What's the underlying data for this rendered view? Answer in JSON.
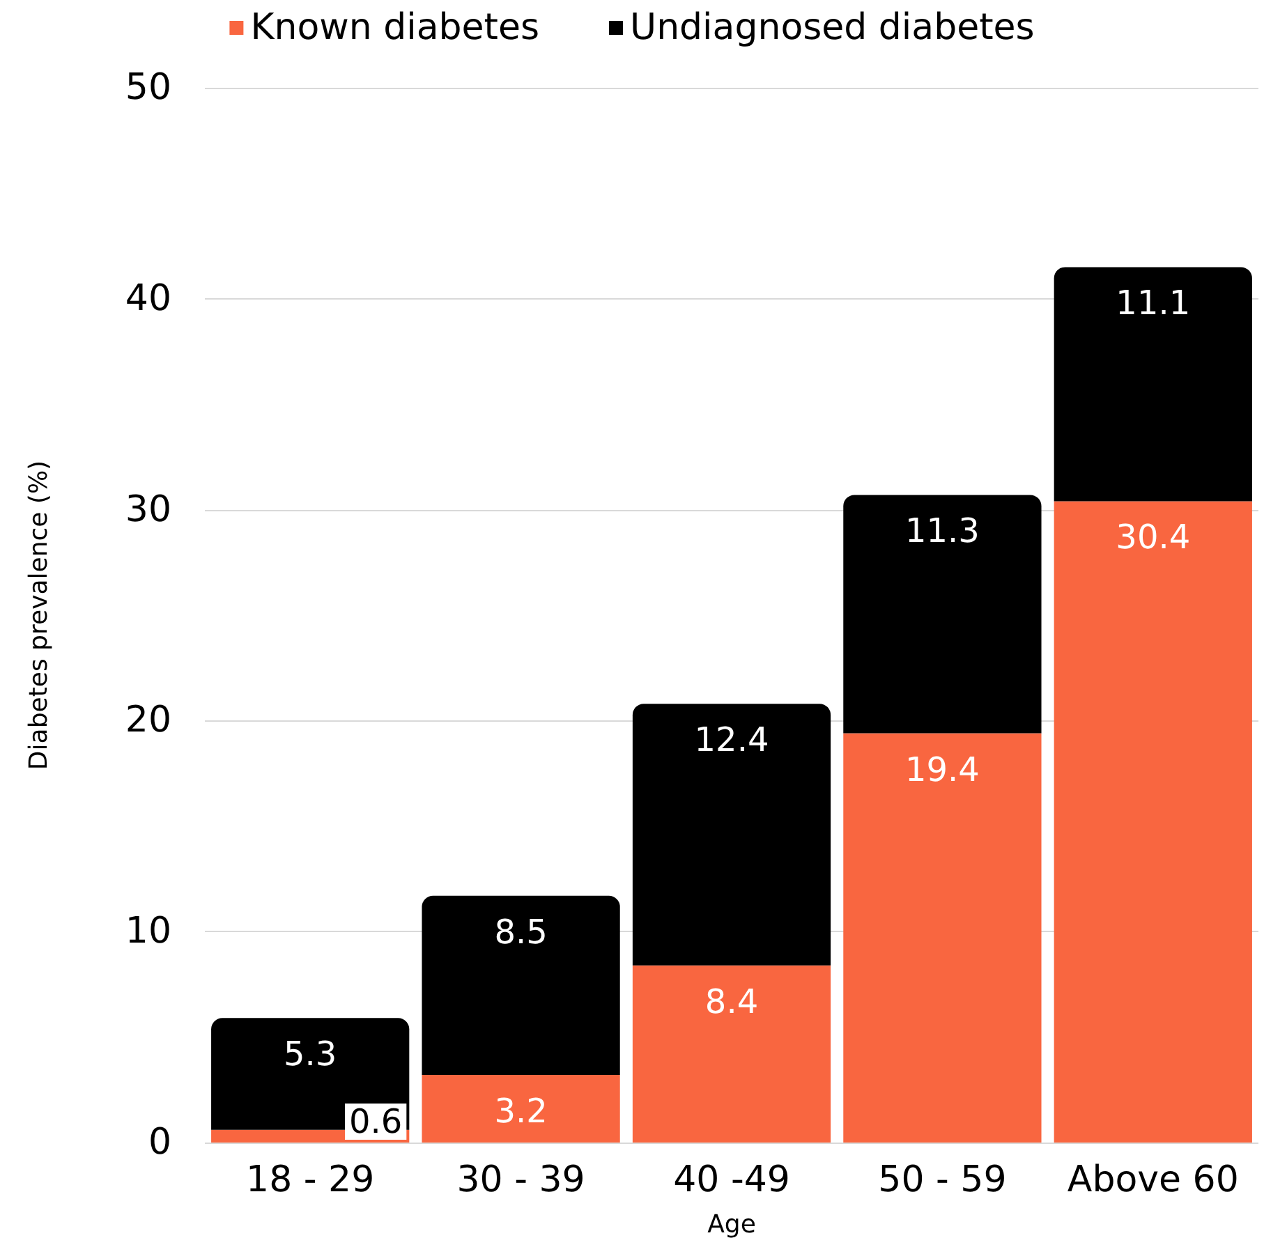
{
  "chart_data": {
    "type": "bar",
    "stacked": true,
    "xlabel": "Age",
    "ylabel": "Diabetes prevalence (%)",
    "categories": [
      "18 - 29",
      "30 - 39",
      "40 -49",
      "50 - 59",
      "Above 60"
    ],
    "series": [
      {
        "name": "Known diabetes",
        "color": "#f96640",
        "values": [
          0.6,
          3.2,
          8.4,
          19.4,
          30.4
        ]
      },
      {
        "name": "Undiagnosed diabetes",
        "color": "#000000",
        "values": [
          5.3,
          8.5,
          12.4,
          11.3,
          11.1
        ]
      }
    ],
    "ylim": [
      0,
      50
    ],
    "yticks": [
      0,
      10,
      20,
      30,
      40,
      50
    ],
    "grid": "y",
    "legend": "top",
    "data_labels": true
  }
}
